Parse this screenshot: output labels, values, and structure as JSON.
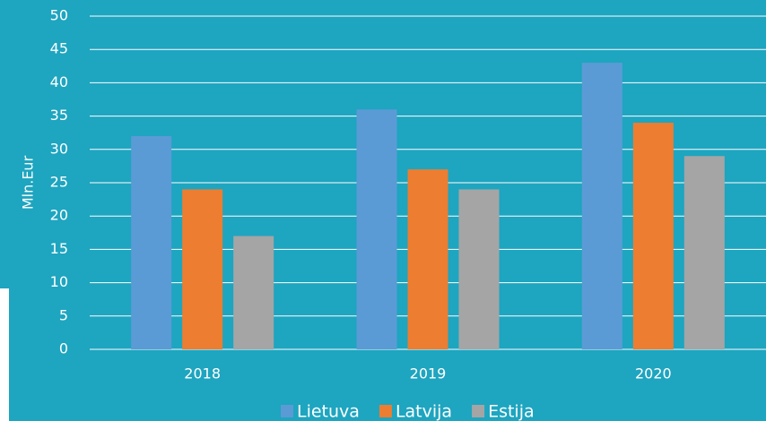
{
  "chart_data": {
    "type": "bar",
    "y_label": "Mln.Eur",
    "categories": [
      "2018",
      "2019",
      "2020"
    ],
    "series": [
      {
        "name": "Lietuva",
        "color": "#5b9bd5",
        "values": [
          32,
          36,
          43
        ]
      },
      {
        "name": "Latvija",
        "color": "#ed7d31",
        "values": [
          24,
          27,
          34
        ]
      },
      {
        "name": "Estija",
        "color": "#a5a5a5",
        "values": [
          17,
          24,
          29
        ]
      }
    ],
    "ylim": [
      0,
      50
    ],
    "yticks": [
      0,
      5,
      10,
      15,
      20,
      25,
      30,
      35,
      40,
      45,
      50
    ],
    "grid": true,
    "legend": "bottom"
  }
}
